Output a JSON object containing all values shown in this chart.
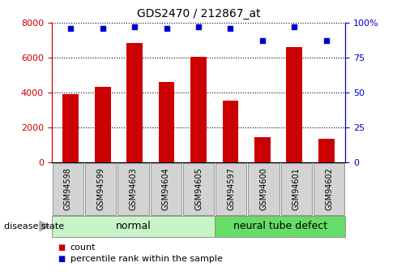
{
  "title": "GDS2470 / 212867_at",
  "samples": [
    "GSM94598",
    "GSM94599",
    "GSM94603",
    "GSM94604",
    "GSM94605",
    "GSM94597",
    "GSM94600",
    "GSM94601",
    "GSM94602"
  ],
  "counts": [
    3900,
    4300,
    6800,
    4600,
    6050,
    3550,
    1450,
    6600,
    1350
  ],
  "percentiles": [
    96,
    96,
    97,
    96,
    97,
    96,
    87,
    97,
    87
  ],
  "bar_color": "#cc0000",
  "dot_color": "#0000cc",
  "left_ylim": [
    0,
    8000
  ],
  "right_ylim": [
    0,
    100
  ],
  "left_yticks": [
    0,
    2000,
    4000,
    6000,
    8000
  ],
  "right_yticks": [
    0,
    25,
    50,
    75,
    100
  ],
  "right_yticklabels": [
    "0",
    "25",
    "50",
    "75",
    "100%"
  ],
  "group1_label": "normal",
  "group2_label": "neural tube defect",
  "group1_count": 5,
  "group2_count": 4,
  "disease_state_label": "disease state",
  "legend_count_label": "count",
  "legend_pct_label": "percentile rank within the sample",
  "bar_width": 0.5,
  "tick_bg_color": "#d3d3d3",
  "group1_bg": "#c8f5c8",
  "group2_bg": "#66dd66",
  "fig_width": 4.9,
  "fig_height": 3.45,
  "dpi": 100
}
